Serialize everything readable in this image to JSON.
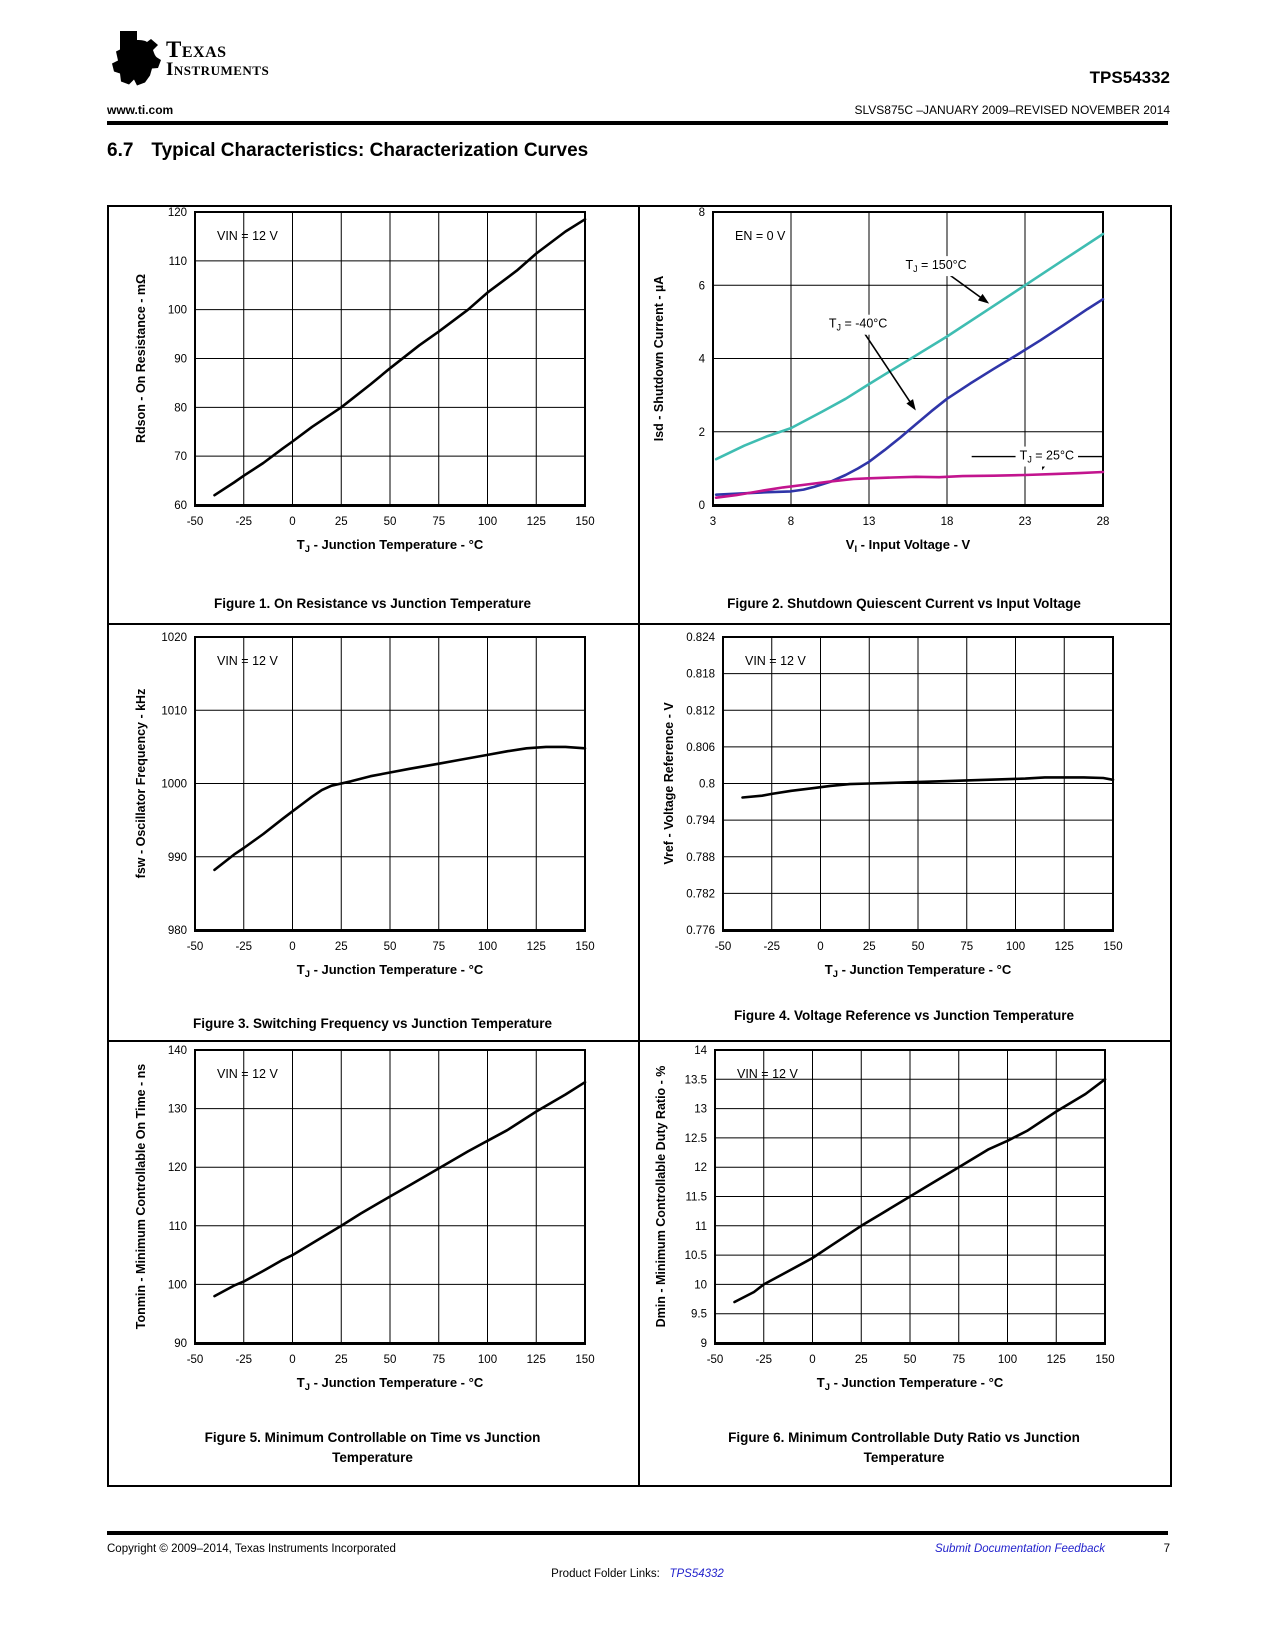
{
  "header": {
    "logo_monogram": "ti",
    "brand_line1": "Texas",
    "brand_line2": "Instruments",
    "part_number": "TPS54332",
    "website": "www.ti.com",
    "doc_info": "SLVS875C –JANUARY 2009–REVISED NOVEMBER 2014"
  },
  "section": {
    "number": "6.7",
    "title": "Typical Characteristics: Characterization Curves"
  },
  "colors": {
    "link_blue": "#2222CC",
    "curve_teal": "#3FBDB2",
    "curve_blue": "#2F35A8",
    "curve_magenta": "#C2148E",
    "curve_black": "#000000"
  },
  "footer": {
    "copyright": "Copyright © 2009–2014, Texas Instruments Incorporated",
    "feedback_link": "Submit Documentation Feedback",
    "page_number": "7",
    "product_folder_prefix": "Product Folder Links:",
    "product_folder_link": "TPS54332"
  },
  "chart_data": [
    {
      "type": "line",
      "caption": "Figure 1. On Resistance vs Junction Temperature",
      "corner_label": "VIN = 12 V",
      "xlabel": {
        "pre": "T",
        "sub": "J",
        "post": " - Junction Temperature - °C"
      },
      "ylabel": "Rdson - On Resistance - mΩ",
      "xlim": [
        -50,
        150
      ],
      "ylim": [
        60,
        120
      ],
      "xticks": [
        -50,
        -25,
        0,
        25,
        50,
        75,
        100,
        125,
        150
      ],
      "yticks": [
        60,
        70,
        80,
        90,
        100,
        110,
        120
      ],
      "grid": true,
      "legend": "none",
      "series": [
        {
          "name": "Rdson",
          "color": "#000000",
          "points": [
            [
              -40,
              62
            ],
            [
              -30,
              64.6
            ],
            [
              -25,
              66
            ],
            [
              -15,
              68.6
            ],
            [
              -5,
              71.6
            ],
            [
              0,
              73
            ],
            [
              10,
              76
            ],
            [
              25,
              80
            ],
            [
              40,
              84.7
            ],
            [
              50,
              88
            ],
            [
              65,
              92.7
            ],
            [
              75,
              95.5
            ],
            [
              90,
              100
            ],
            [
              100,
              103.5
            ],
            [
              115,
              108
            ],
            [
              125,
              111.5
            ],
            [
              140,
              116
            ],
            [
              150,
              118.5
            ]
          ]
        }
      ]
    },
    {
      "type": "line",
      "caption": "Figure 2. Shutdown Quiescent Current vs Input Voltage",
      "corner_label": "EN = 0 V",
      "xlabel": {
        "pre": "V",
        "sub": "I",
        "post": " - Input Voltage - V"
      },
      "ylabel": "Isd - Shutdown Current - µA",
      "xlim": [
        3,
        28
      ],
      "ylim": [
        0,
        8
      ],
      "xticks": [
        3,
        8,
        13,
        18,
        23,
        28
      ],
      "yticks": [
        0,
        2,
        4,
        6,
        8
      ],
      "grid": true,
      "legend": "inline-labels",
      "series": [
        {
          "name": "TJ = 150°C",
          "color": "#3FBDB2",
          "points": [
            [
              3.2,
              1.25
            ],
            [
              5,
              1.62
            ],
            [
              6.5,
              1.88
            ],
            [
              8,
              2.1
            ],
            [
              10,
              2.55
            ],
            [
              11.5,
              2.9
            ],
            [
              13,
              3.3
            ],
            [
              15.5,
              3.95
            ],
            [
              18,
              4.6
            ],
            [
              20.5,
              5.3
            ],
            [
              23,
              6
            ],
            [
              25.5,
              6.7
            ],
            [
              28,
              7.4
            ]
          ]
        },
        {
          "name": "TJ = -40°C",
          "color": "#2F35A8",
          "points": [
            [
              3.2,
              0.28
            ],
            [
              5,
              0.32
            ],
            [
              6.5,
              0.35
            ],
            [
              8,
              0.37
            ],
            [
              8.8,
              0.42
            ],
            [
              9.5,
              0.5
            ],
            [
              10.5,
              0.63
            ],
            [
              11.5,
              0.82
            ],
            [
              12.3,
              1
            ],
            [
              13,
              1.18
            ],
            [
              14,
              1.5
            ],
            [
              15,
              1.84
            ],
            [
              16,
              2.2
            ],
            [
              17,
              2.56
            ],
            [
              18,
              2.9
            ],
            [
              19.5,
              3.32
            ],
            [
              21,
              3.72
            ],
            [
              22.5,
              4.1
            ],
            [
              24,
              4.5
            ],
            [
              25.5,
              4.92
            ],
            [
              27,
              5.35
            ],
            [
              28,
              5.62
            ]
          ]
        },
        {
          "name": "TJ = 25°C",
          "color": "#C2148E",
          "points": [
            [
              3.2,
              0.2
            ],
            [
              4.5,
              0.27
            ],
            [
              6,
              0.38
            ],
            [
              7.5,
              0.48
            ],
            [
              9,
              0.56
            ],
            [
              10.5,
              0.64
            ],
            [
              12,
              0.71
            ],
            [
              13,
              0.73
            ],
            [
              14.5,
              0.75
            ],
            [
              16,
              0.77
            ],
            [
              17.5,
              0.76
            ],
            [
              19,
              0.79
            ],
            [
              21,
              0.8
            ],
            [
              23,
              0.82
            ],
            [
              25,
              0.85
            ],
            [
              26.5,
              0.87
            ],
            [
              28,
              0.9
            ]
          ]
        }
      ],
      "annotations": [
        {
          "pre": "T",
          "sub": "J",
          "post": " = 150°C",
          "label_x": 17.3,
          "label_y": 6.55,
          "tip_x": 20.7,
          "tip_y": 5.5
        },
        {
          "pre": "T",
          "sub": "J",
          "post": " = -40°C",
          "label_x": 12.3,
          "label_y": 4.95,
          "tip_x": 16,
          "tip_y": 2.58
        },
        {
          "pre": "T",
          "sub": "J",
          "post": " = 25°C",
          "label_x": 24.4,
          "label_y": 1.35,
          "tip_x": 24.1,
          "tip_y": 0.95,
          "hline": true
        }
      ]
    },
    {
      "type": "line",
      "caption": "Figure 3. Switching Frequency vs Junction Temperature",
      "corner_label": "VIN = 12 V",
      "xlabel": {
        "pre": "T",
        "sub": "J",
        "post": " - Junction Temperature - °C"
      },
      "ylabel": "fsw - Oscillator Frequency - kHz",
      "xlim": [
        -50,
        150
      ],
      "ylim": [
        980,
        1020
      ],
      "xticks": [
        -50,
        -25,
        0,
        25,
        50,
        75,
        100,
        125,
        150
      ],
      "yticks": [
        980,
        990,
        1000,
        1010,
        1020
      ],
      "grid": true,
      "legend": "none",
      "series": [
        {
          "name": "fsw",
          "color": "#000000",
          "points": [
            [
              -40,
              988.2
            ],
            [
              -30,
              990.3
            ],
            [
              -25,
              991.2
            ],
            [
              -15,
              993.1
            ],
            [
              -5,
              995.2
            ],
            [
              0,
              996.2
            ],
            [
              5,
              997.2
            ],
            [
              10,
              998.2
            ],
            [
              15,
              999.1
            ],
            [
              20,
              999.7
            ],
            [
              25,
              1000
            ],
            [
              30,
              1000.3
            ],
            [
              40,
              1001
            ],
            [
              50,
              1001.5
            ],
            [
              60,
              1002
            ],
            [
              75,
              1002.7
            ],
            [
              85,
              1003.2
            ],
            [
              100,
              1003.9
            ],
            [
              110,
              1004.4
            ],
            [
              120,
              1004.8
            ],
            [
              130,
              1005
            ],
            [
              140,
              1005
            ],
            [
              150,
              1004.8
            ]
          ]
        }
      ]
    },
    {
      "type": "line",
      "caption": "Figure 4. Voltage Reference vs Junction Temperature",
      "corner_label": "VIN = 12 V",
      "xlabel": {
        "pre": "T",
        "sub": "J",
        "post": " - Junction Temperature - °C"
      },
      "ylabel": "Vref - Voltage Reference - V",
      "xlim": [
        -50,
        150
      ],
      "ylim": [
        0.776,
        0.824
      ],
      "xticks": [
        -50,
        -25,
        0,
        25,
        50,
        75,
        100,
        125,
        150
      ],
      "yticks": [
        0.776,
        0.782,
        0.788,
        0.794,
        0.8,
        0.806,
        0.812,
        0.818,
        0.824
      ],
      "grid": true,
      "legend": "none",
      "series": [
        {
          "name": "Vref",
          "color": "#000000",
          "points": [
            [
              -40,
              0.7977
            ],
            [
              -30,
              0.798
            ],
            [
              -25,
              0.7983
            ],
            [
              -15,
              0.7988
            ],
            [
              -5,
              0.7992
            ],
            [
              5,
              0.7996
            ],
            [
              15,
              0.7999
            ],
            [
              25,
              0.8
            ],
            [
              35,
              0.8001
            ],
            [
              45,
              0.8002
            ],
            [
              55,
              0.8003
            ],
            [
              65,
              0.8004
            ],
            [
              75,
              0.8005
            ],
            [
              85,
              0.8006
            ],
            [
              95,
              0.8007
            ],
            [
              105,
              0.8008
            ],
            [
              115,
              0.801
            ],
            [
              125,
              0.801
            ],
            [
              135,
              0.801
            ],
            [
              145,
              0.8009
            ],
            [
              150,
              0.8006
            ]
          ]
        }
      ]
    },
    {
      "type": "line",
      "caption": "Figure 5. Minimum Controllable on Time vs Junction Temperature",
      "corner_label": "VIN = 12 V",
      "xlabel": {
        "pre": "T",
        "sub": "J",
        "post": " - Junction Temperature - °C"
      },
      "ylabel": "Tonmin - Minimum Controllable On Time - ns",
      "xlim": [
        -50,
        150
      ],
      "ylim": [
        90,
        140
      ],
      "xticks": [
        -50,
        -25,
        0,
        25,
        50,
        75,
        100,
        125,
        150
      ],
      "yticks": [
        90,
        100,
        110,
        120,
        130,
        140
      ],
      "grid": true,
      "legend": "none",
      "series": [
        {
          "name": "Tonmin",
          "color": "#000000",
          "points": [
            [
              -40,
              98
            ],
            [
              -30,
              99.8
            ],
            [
              -25,
              100.5
            ],
            [
              -15,
              102.3
            ],
            [
              -5,
              104.2
            ],
            [
              0,
              105
            ],
            [
              10,
              107
            ],
            [
              25,
              110
            ],
            [
              35,
              112.1
            ],
            [
              50,
              115
            ],
            [
              60,
              116.9
            ],
            [
              75,
              119.8
            ],
            [
              90,
              122.7
            ],
            [
              100,
              124.5
            ],
            [
              110,
              126.3
            ],
            [
              125,
              129.5
            ],
            [
              140,
              132.4
            ],
            [
              150,
              134.5
            ]
          ]
        }
      ]
    },
    {
      "type": "line",
      "caption": "Figure 6. Minimum Controllable Duty Ratio vs Junction Temperature",
      "corner_label": "VIN = 12 V",
      "xlabel": {
        "pre": "T",
        "sub": "J",
        "post": " - Junction Temperature - °C"
      },
      "ylabel": "Dmin - Minimum Controllable Duty Ratio - %",
      "xlim": [
        -50,
        150
      ],
      "ylim": [
        9,
        14
      ],
      "xticks": [
        -50,
        -25,
        0,
        25,
        50,
        75,
        100,
        125,
        150
      ],
      "yticks": [
        9,
        9.5,
        10,
        10.5,
        11,
        11.5,
        12,
        12.5,
        13,
        13.5,
        14
      ],
      "grid": true,
      "legend": "none",
      "series": [
        {
          "name": "Dmin",
          "color": "#000000",
          "points": [
            [
              -40,
              9.7
            ],
            [
              -30,
              9.87
            ],
            [
              -25,
              10
            ],
            [
              -15,
              10.18
            ],
            [
              -5,
              10.36
            ],
            [
              0,
              10.45
            ],
            [
              10,
              10.67
            ],
            [
              25,
              11
            ],
            [
              35,
              11.2
            ],
            [
              50,
              11.5
            ],
            [
              60,
              11.7
            ],
            [
              75,
              12
            ],
            [
              90,
              12.3
            ],
            [
              100,
              12.45
            ],
            [
              110,
              12.62
            ],
            [
              125,
              12.95
            ],
            [
              140,
              13.25
            ],
            [
              150,
              13.5
            ]
          ]
        }
      ]
    }
  ]
}
